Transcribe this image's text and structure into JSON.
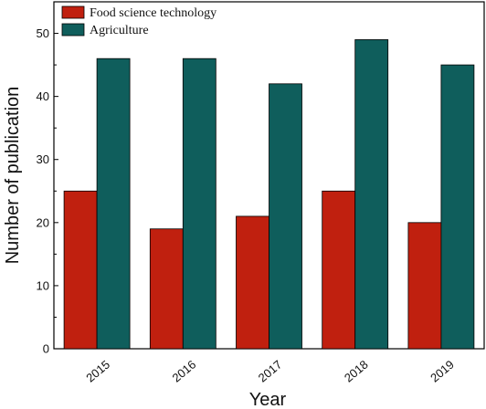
{
  "chart_data": {
    "type": "bar",
    "categories": [
      "2015",
      "2016",
      "2017",
      "2018",
      "2019"
    ],
    "series": [
      {
        "name": "Food science technology",
        "values": [
          25,
          19,
          21,
          25,
          20
        ],
        "color": "#c0200f"
      },
      {
        "name": "Agriculture",
        "values": [
          46,
          46,
          42,
          49,
          45
        ],
        "color": "#0f5e5c"
      }
    ],
    "xlabel": "Year",
    "ylabel": "Number of publication",
    "ylim": [
      0,
      55
    ],
    "yticks": [
      0,
      10,
      20,
      30,
      40,
      50
    ],
    "grid": false,
    "legend_position": "top-left"
  }
}
